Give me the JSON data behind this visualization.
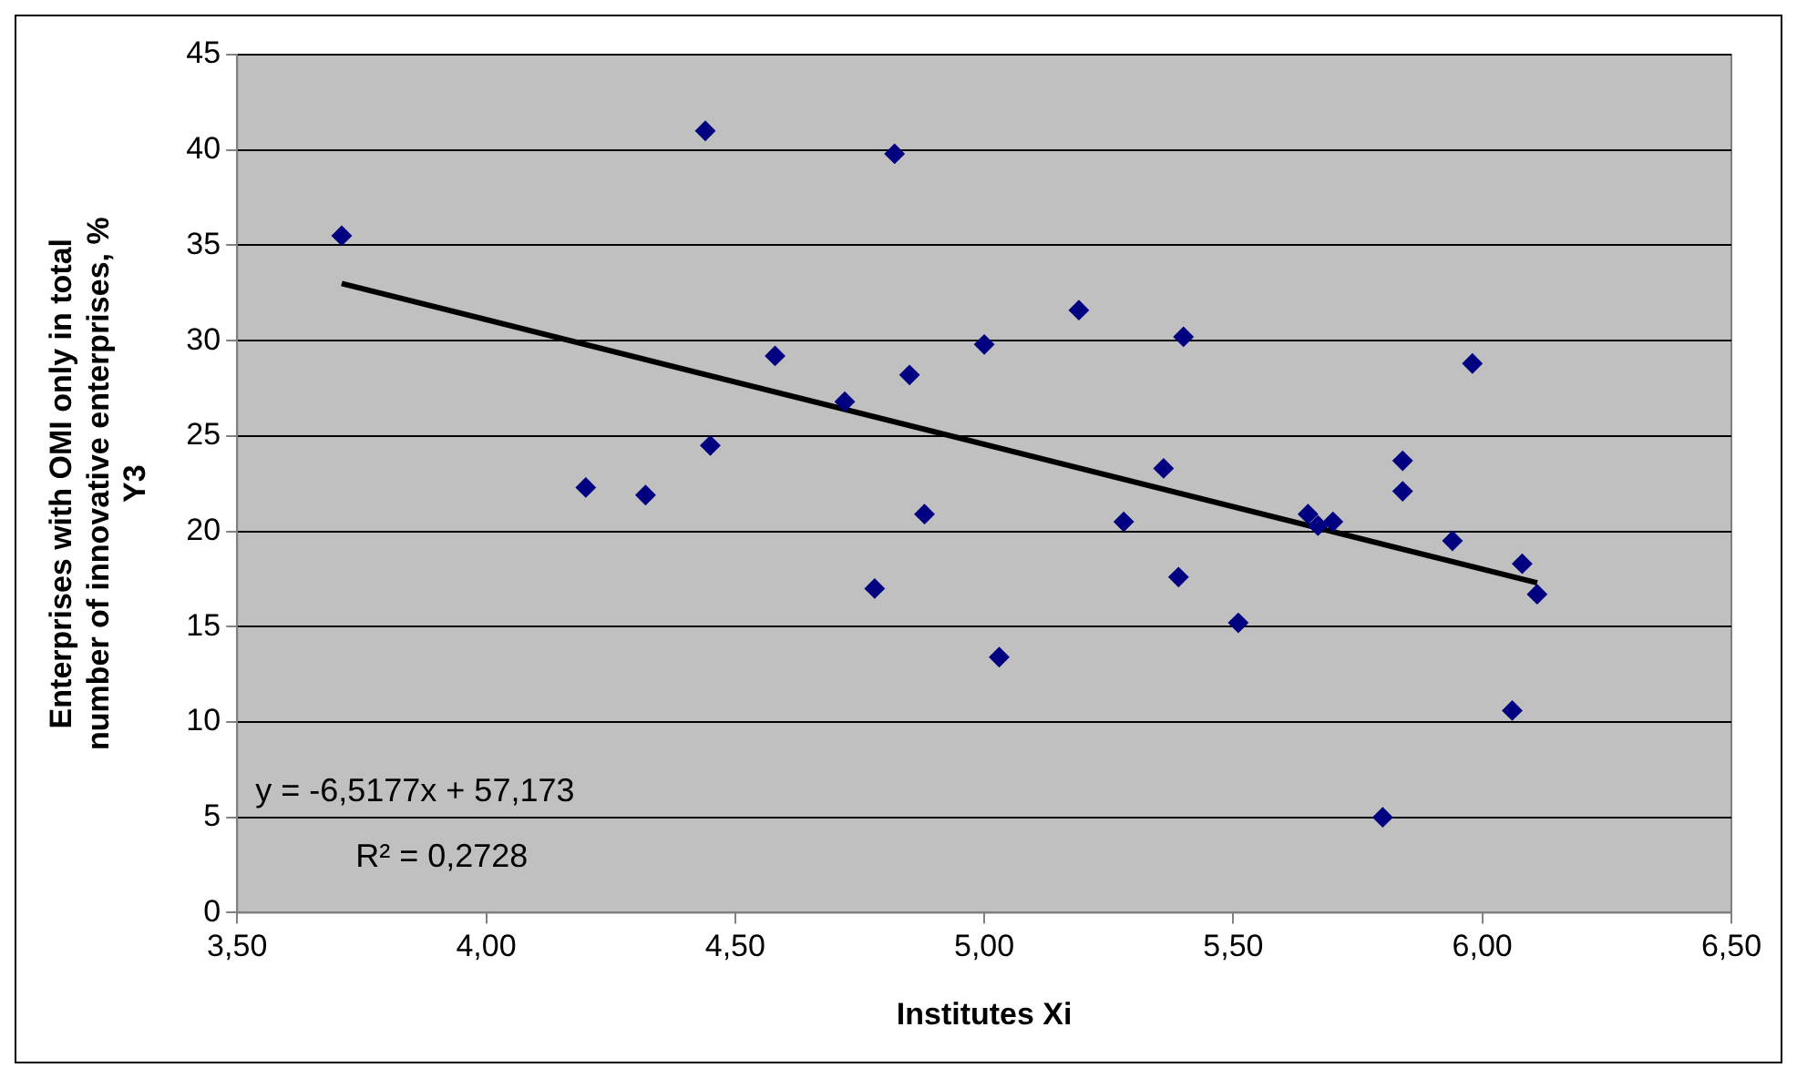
{
  "chart_data": {
    "type": "scatter",
    "xlabel": "Institutes Xi",
    "ylabel": "Enterprises with OMI only in total\nnumber of innovative enterprises, %\nY3",
    "series": [
      {
        "type": "scatter",
        "color": "#000080",
        "marker": "diamond",
        "x": [
          3.71,
          4.2,
          4.32,
          4.44,
          4.45,
          4.58,
          4.72,
          4.78,
          4.82,
          4.85,
          4.88,
          5.0,
          5.03,
          5.19,
          5.28,
          5.36,
          5.39,
          5.4,
          5.51,
          5.65,
          5.67,
          5.7,
          5.8,
          5.84,
          5.84,
          5.94,
          5.98,
          6.06,
          6.08,
          6.11
        ],
        "values": [
          35.5,
          22.3,
          21.9,
          41.0,
          24.5,
          29.2,
          26.8,
          17.0,
          39.8,
          28.2,
          20.9,
          29.8,
          13.4,
          31.6,
          20.5,
          23.3,
          17.6,
          30.2,
          15.2,
          20.9,
          20.3,
          20.5,
          5.0,
          23.7,
          22.1,
          19.5,
          28.8,
          10.6,
          18.3,
          16.7
        ]
      },
      {
        "type": "line",
        "color": "#000000",
        "marker": "none",
        "x": [
          3.71,
          6.11
        ],
        "values": [
          33.0,
          17.3
        ]
      }
    ],
    "annotations": [
      "y = -6,5177x + 57,173",
      "R² = 0,2728"
    ],
    "xlim": [
      3.5,
      6.5
    ],
    "xticks": [
      {
        "value": 3.5,
        "label": "3,50"
      },
      {
        "value": 4,
        "label": "4,00"
      },
      {
        "value": 4.5,
        "label": "4,50"
      },
      {
        "value": 5,
        "label": "5,00"
      },
      {
        "value": 5.5,
        "label": "5,50"
      },
      {
        "value": 6,
        "label": "6,00"
      },
      {
        "value": 6.5,
        "label": "6,50"
      }
    ],
    "ylim": [
      0,
      45
    ],
    "yticks": [
      0,
      5,
      10,
      15,
      20,
      25,
      30,
      35,
      40,
      45
    ],
    "grid": "y",
    "legend": false
  }
}
